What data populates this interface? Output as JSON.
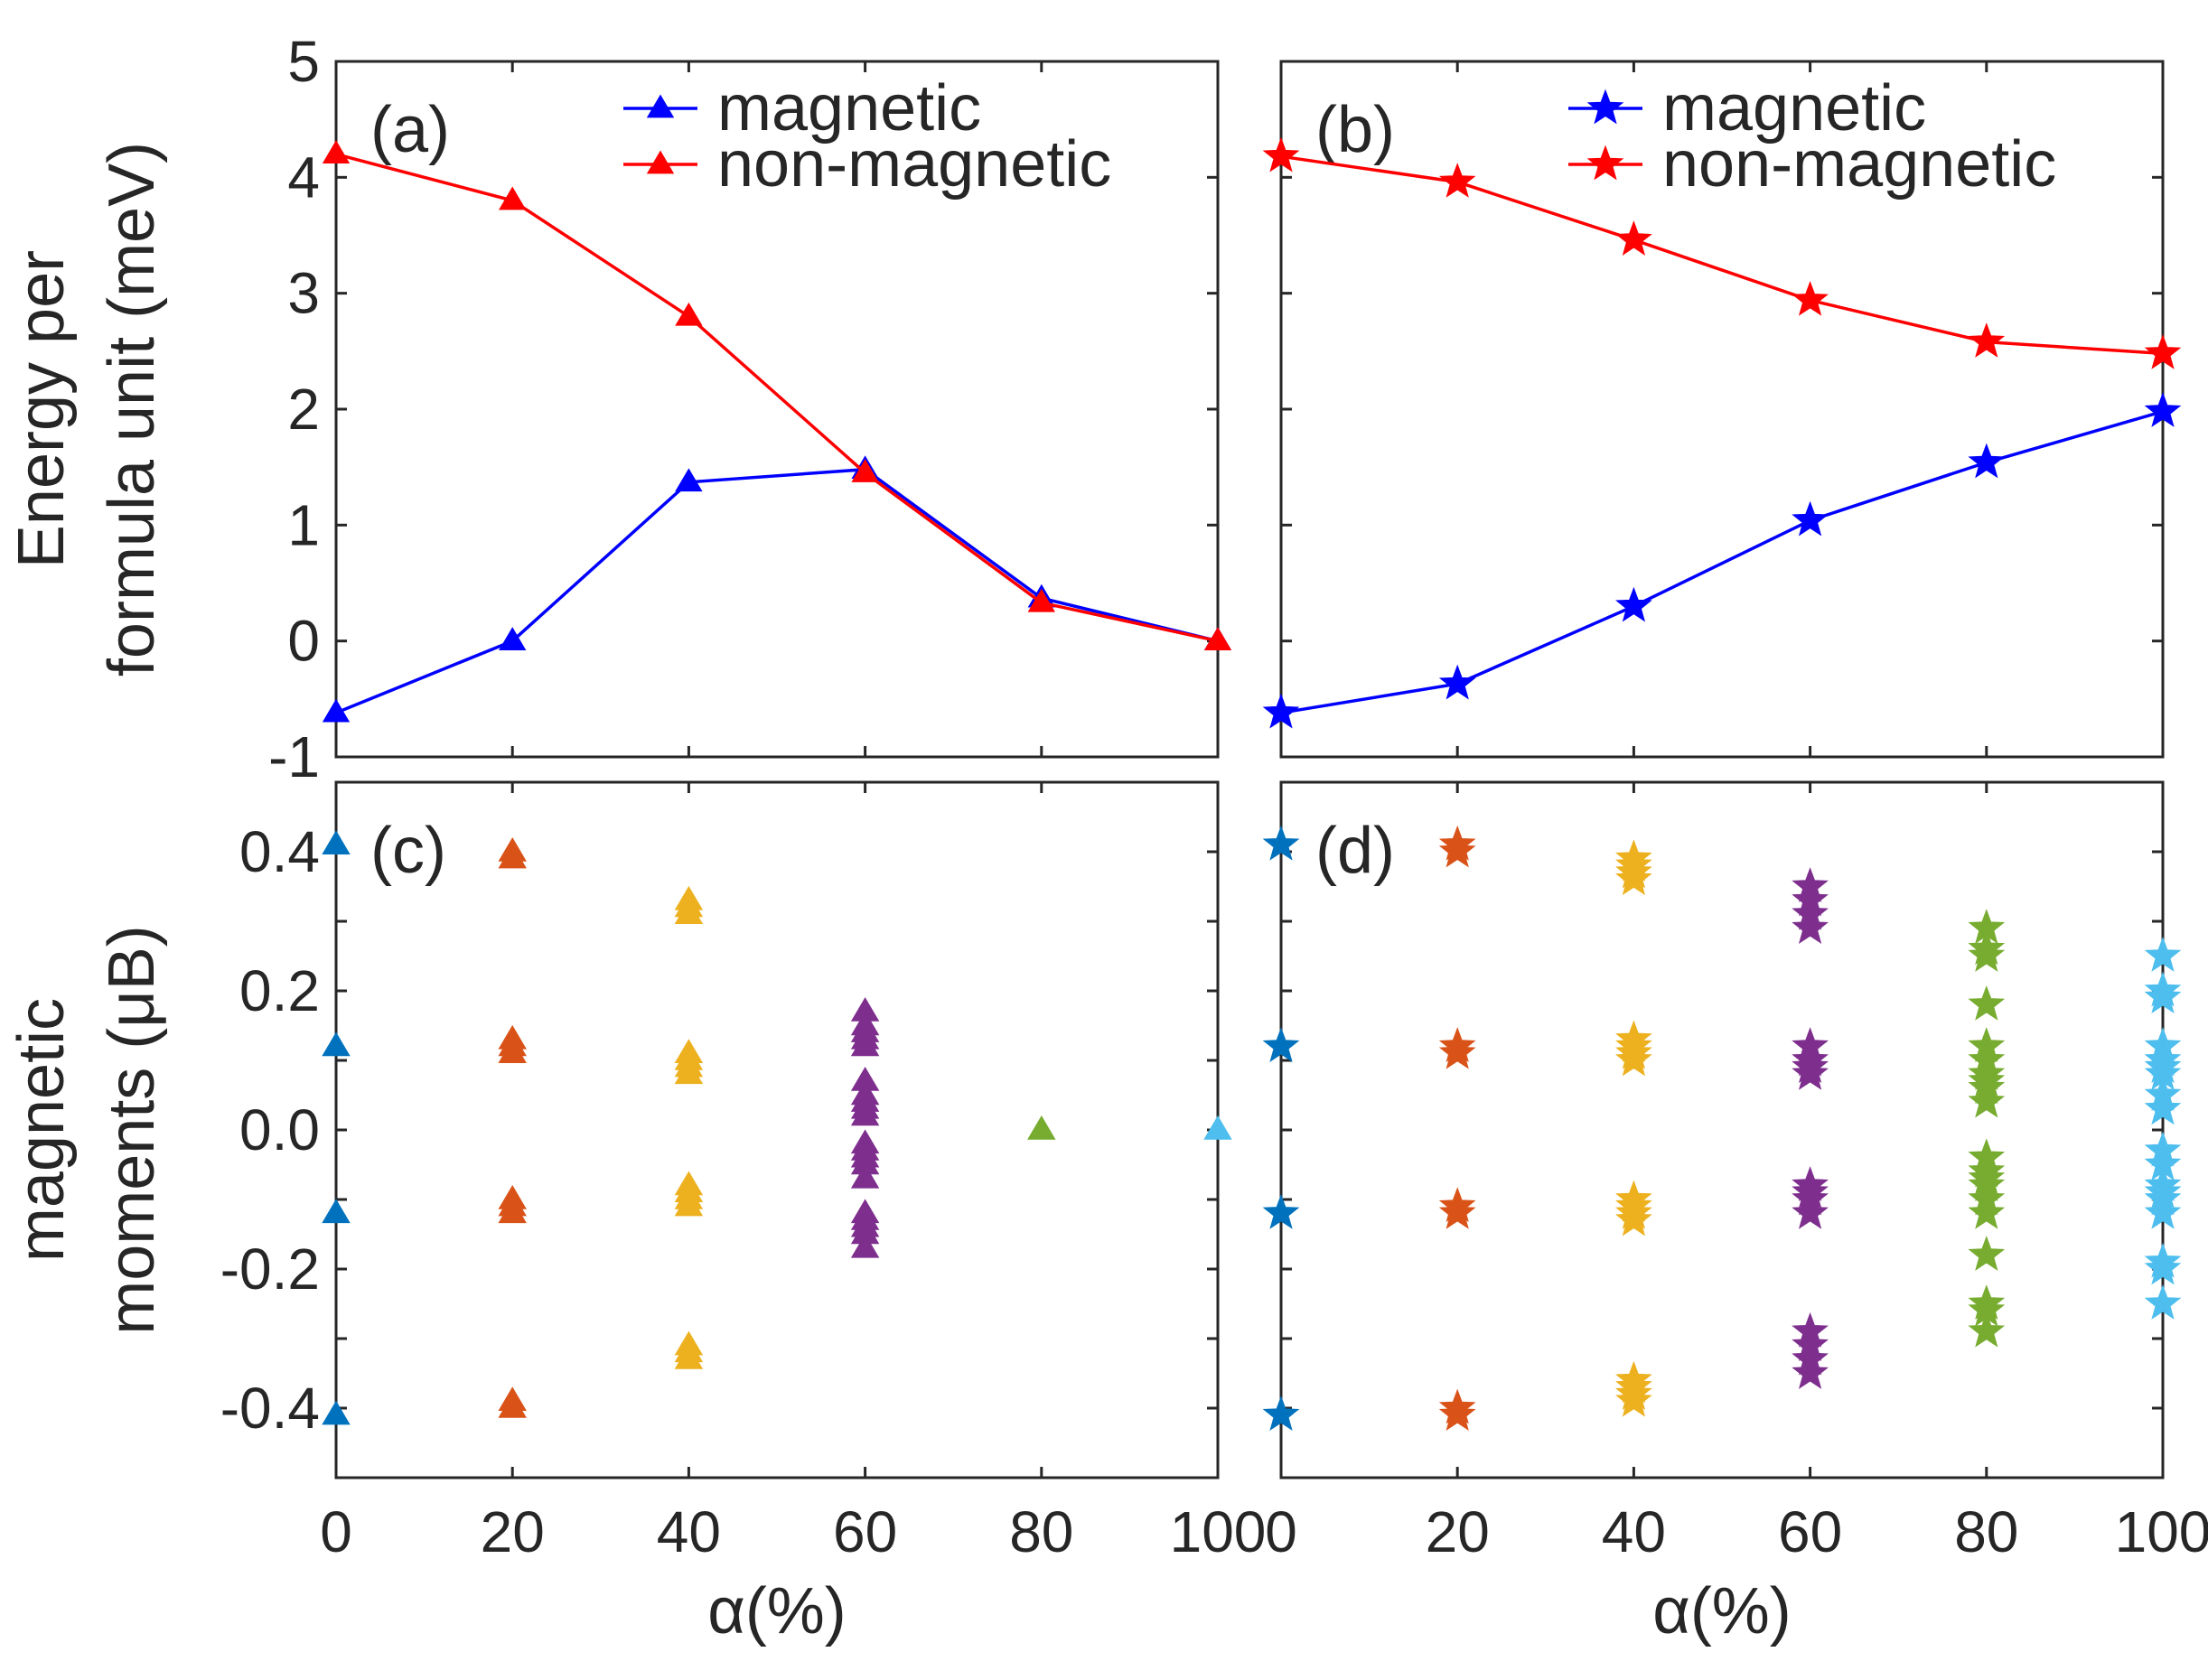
{
  "chart_data": [
    {
      "id": "a",
      "type": "line",
      "panel_label": "(a)",
      "marker": "triangle",
      "ylabel": [
        "Energy per",
        "formula unit (meV)"
      ],
      "xlabel": "",
      "xlim": [
        0,
        100
      ],
      "ylim": [
        -1,
        5
      ],
      "xticks": [
        0,
        20,
        40,
        60,
        80,
        100
      ],
      "yticks": [
        -1,
        0,
        1,
        2,
        3,
        4,
        5
      ],
      "ytick_labels": [
        "-1",
        "0",
        "1",
        "2",
        "3",
        "4",
        "5"
      ],
      "show_xtick_labels": false,
      "show_ytick_labels": true,
      "legend_position": "top-right",
      "series": [
        {
          "name": "magnetic",
          "color": "#0000ff",
          "x": [
            0,
            20,
            40,
            60,
            80,
            100
          ],
          "y": [
            -0.62,
            0.0,
            1.37,
            1.48,
            0.37,
            0.0
          ]
        },
        {
          "name": "non-magnetic",
          "color": "#ff0000",
          "x": [
            0,
            20,
            40,
            60,
            80,
            100
          ],
          "y": [
            4.2,
            3.8,
            2.8,
            1.45,
            0.33,
            0.0
          ]
        }
      ]
    },
    {
      "id": "b",
      "type": "line",
      "panel_label": "(b)",
      "marker": "star",
      "ylabel": [],
      "xlabel": "",
      "xlim": [
        0,
        100
      ],
      "ylim": [
        -1,
        5
      ],
      "xticks": [
        0,
        20,
        40,
        60,
        80,
        100
      ],
      "yticks": [
        -1,
        0,
        1,
        2,
        3,
        4,
        5
      ],
      "ytick_labels": [],
      "show_xtick_labels": false,
      "show_ytick_labels": false,
      "legend_position": "top-right",
      "series": [
        {
          "name": "magnetic",
          "color": "#0000ff",
          "x": [
            0,
            20,
            40,
            60,
            80,
            100
          ],
          "y": [
            -0.62,
            -0.37,
            0.3,
            1.04,
            1.54,
            1.98
          ]
        },
        {
          "name": "non-magnetic",
          "color": "#ff0000",
          "x": [
            0,
            20,
            40,
            60,
            80,
            100
          ],
          "y": [
            4.18,
            3.96,
            3.46,
            2.94,
            2.58,
            2.48
          ]
        }
      ]
    },
    {
      "id": "c",
      "type": "scatter",
      "panel_label": "(c)",
      "marker": "triangle",
      "ylabel": [
        "magnetic",
        "moments (μB)"
      ],
      "xlabel": "α(%)",
      "xlim": [
        0,
        100
      ],
      "ylim": [
        -0.5,
        0.5
      ],
      "xticks": [
        0,
        20,
        40,
        60,
        80,
        100
      ],
      "xtick_labels": [
        "0",
        "20",
        "40",
        "60",
        "80",
        "100"
      ],
      "yticks": [
        -0.4,
        -0.3,
        -0.2,
        -0.1,
        0.0,
        0.1,
        0.2,
        0.3,
        0.4
      ],
      "ytick_labels": [
        "-0.4",
        "",
        "-0.2",
        "",
        "0.0",
        "",
        "0.2",
        "",
        "0.4"
      ],
      "show_xtick_labels": true,
      "show_ytick_labels": true,
      "series": [
        {
          "color": "#0072bd",
          "x": 0,
          "values": [
            0.41,
            0.12,
            -0.12,
            -0.41
          ]
        },
        {
          "color": "#d95319",
          "x": 20,
          "values": [
            0.4,
            0.39,
            0.13,
            0.12,
            0.11,
            -0.1,
            -0.11,
            -0.12,
            -0.39,
            -0.4
          ]
        },
        {
          "color": "#edb120",
          "x": 40,
          "values": [
            0.33,
            0.32,
            0.31,
            0.11,
            0.1,
            0.09,
            0.08,
            -0.08,
            -0.09,
            -0.1,
            -0.11,
            -0.31,
            -0.32,
            -0.33
          ]
        },
        {
          "color": "#7e2f8e",
          "x": 60,
          "values": [
            0.17,
            0.15,
            0.14,
            0.13,
            0.12,
            0.07,
            0.05,
            0.04,
            0.03,
            0.02,
            -0.02,
            -0.03,
            -0.04,
            -0.05,
            -0.07,
            -0.12,
            -0.13,
            -0.14,
            -0.15,
            -0.17
          ]
        },
        {
          "color": "#77ac30",
          "x": 80,
          "values": [
            0.0
          ]
        },
        {
          "color": "#4dbeee",
          "x": 100,
          "values": [
            0.0
          ]
        }
      ]
    },
    {
      "id": "d",
      "type": "scatter",
      "panel_label": "(d)",
      "marker": "star",
      "ylabel": [],
      "xlabel": "α(%)",
      "xlim": [
        0,
        100
      ],
      "ylim": [
        -0.5,
        0.5
      ],
      "xticks": [
        0,
        20,
        40,
        60,
        80,
        100
      ],
      "xtick_labels": [
        "0",
        "20",
        "40",
        "60",
        "80",
        "100"
      ],
      "yticks": [
        -0.4,
        -0.3,
        -0.2,
        -0.1,
        0.0,
        0.1,
        0.2,
        0.3,
        0.4
      ],
      "ytick_labels": [],
      "show_xtick_labels": true,
      "show_ytick_labels": false,
      "series": [
        {
          "color": "#0072bd",
          "x": 0,
          "values": [
            0.41,
            0.12,
            -0.12,
            -0.41
          ]
        },
        {
          "color": "#d95319",
          "x": 20,
          "values": [
            0.41,
            0.4,
            0.12,
            0.11,
            -0.11,
            -0.12,
            -0.4,
            -0.41
          ]
        },
        {
          "color": "#edb120",
          "x": 40,
          "values": [
            0.39,
            0.38,
            0.37,
            0.36,
            0.13,
            0.12,
            0.11,
            0.1,
            -0.1,
            -0.11,
            -0.12,
            -0.13,
            -0.36,
            -0.37,
            -0.38,
            -0.39
          ]
        },
        {
          "color": "#7e2f8e",
          "x": 60,
          "values": [
            0.35,
            0.33,
            0.31,
            0.29,
            0.12,
            0.1,
            0.09,
            0.08,
            -0.08,
            -0.09,
            -0.1,
            -0.12,
            -0.29,
            -0.31,
            -0.33,
            -0.35
          ]
        },
        {
          "color": "#77ac30",
          "x": 80,
          "values": [
            0.29,
            0.26,
            0.25,
            0.18,
            0.12,
            0.1,
            0.08,
            0.07,
            0.06,
            0.04,
            -0.04,
            -0.06,
            -0.07,
            -0.08,
            -0.1,
            -0.12,
            -0.18,
            -0.25,
            -0.26,
            -0.29
          ]
        },
        {
          "color": "#4dbeee",
          "x": 100,
          "values": [
            0.25,
            0.2,
            0.19,
            0.12,
            0.1,
            0.09,
            0.08,
            0.05,
            0.03,
            -0.03,
            -0.05,
            -0.08,
            -0.09,
            -0.1,
            -0.12,
            -0.19,
            -0.2,
            -0.25
          ]
        }
      ]
    }
  ]
}
